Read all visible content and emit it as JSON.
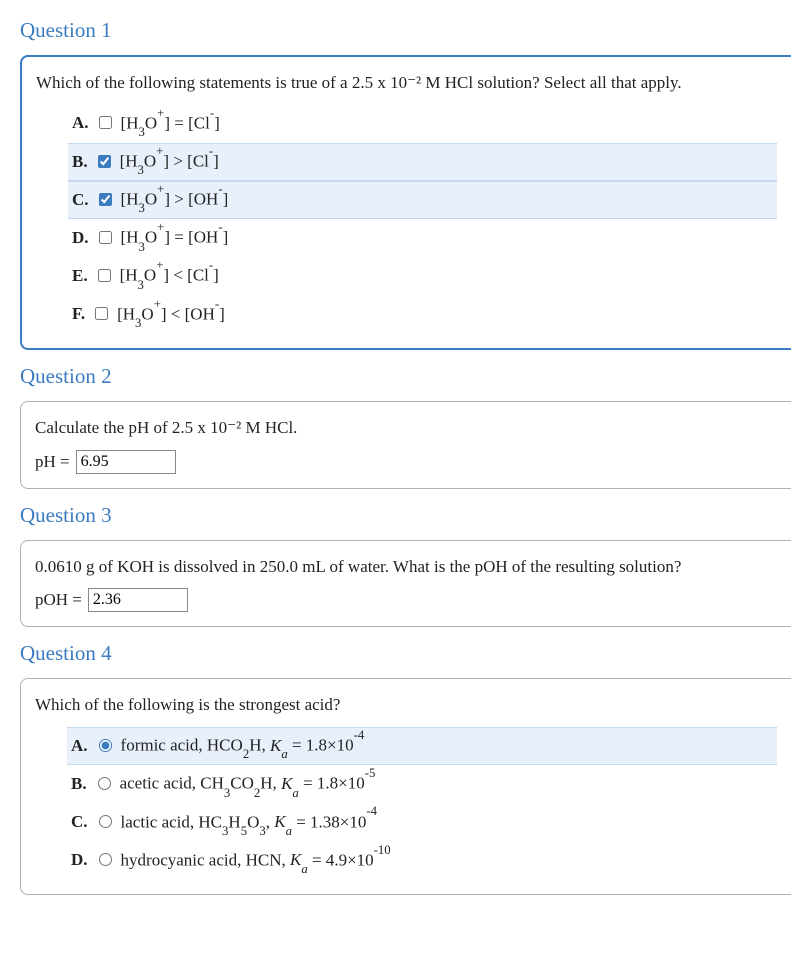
{
  "q1": {
    "title": "Question 1",
    "prompt": "Which of the following statements is true of a 2.5 x 10⁻² M HCl solution? Select all that apply.",
    "options": [
      {
        "letter": "A.",
        "checked": false,
        "html": "[H<sub>3</sub>O<sup>+</sup>] = [Cl<sup>-</sup>]"
      },
      {
        "letter": "B.",
        "checked": true,
        "html": "[H<sub>3</sub>O<sup>+</sup>] > [Cl<sup>-</sup>]"
      },
      {
        "letter": "C.",
        "checked": true,
        "html": "[H<sub>3</sub>O<sup>+</sup>] > [OH<sup>-</sup>]"
      },
      {
        "letter": "D.",
        "checked": false,
        "html": "[H<sub>3</sub>O<sup>+</sup>] = [OH<sup>-</sup>]"
      },
      {
        "letter": "E.",
        "checked": false,
        "html": "[H<sub>3</sub>O<sup>+</sup>] < [Cl<sup>-</sup>]"
      },
      {
        "letter": "F.",
        "checked": false,
        "html": "[H<sub>3</sub>O<sup>+</sup>] < [OH<sup>-</sup>]"
      }
    ]
  },
  "q2": {
    "title": "Question 2",
    "prompt": "Calculate the pH of 2.5 x 10⁻² M HCl.",
    "answer_label": "pH =",
    "answer_value": "6.95"
  },
  "q3": {
    "title": "Question 3",
    "prompt": "0.0610 g of KOH is dissolved in 250.0 mL of water. What is the pOH of the resulting solution?",
    "answer_label": "pOH =",
    "answer_value": "2.36"
  },
  "q4": {
    "title": "Question 4",
    "prompt": "Which of the following is the strongest acid?",
    "options": [
      {
        "letter": "A.",
        "checked": true,
        "html": "formic acid, HCO<sub>2</sub>H, <span class=\"ital\">K<sub>a</sub></span> = 1.8×10<sup>-4</sup>"
      },
      {
        "letter": "B.",
        "checked": false,
        "html": "acetic acid, CH<sub>3</sub>CO<sub>2</sub>H, <span class=\"ital\">K<sub>a</sub></span> = 1.8×10<sup>-5</sup>"
      },
      {
        "letter": "C.",
        "checked": false,
        "html": "lactic acid, HC<sub>3</sub>H<sub>5</sub>O<sub>3</sub>, <span class=\"ital\">K<sub>a</sub></span> = 1.38×10<sup>-4</sup>"
      },
      {
        "letter": "D.",
        "checked": false,
        "html": "hydrocyanic acid, HCN, <span class=\"ital\">K<sub>a</sub></span> = 4.9×10<sup>-10</sup>"
      }
    ]
  },
  "colors": {
    "heading": "#3b7bbf",
    "box_border_active": "#3b7bbf",
    "box_border": "#b0b0b0",
    "selected_bg": "#e8f0fb",
    "selected_border": "#c5d8ef",
    "text": "#222222"
  }
}
